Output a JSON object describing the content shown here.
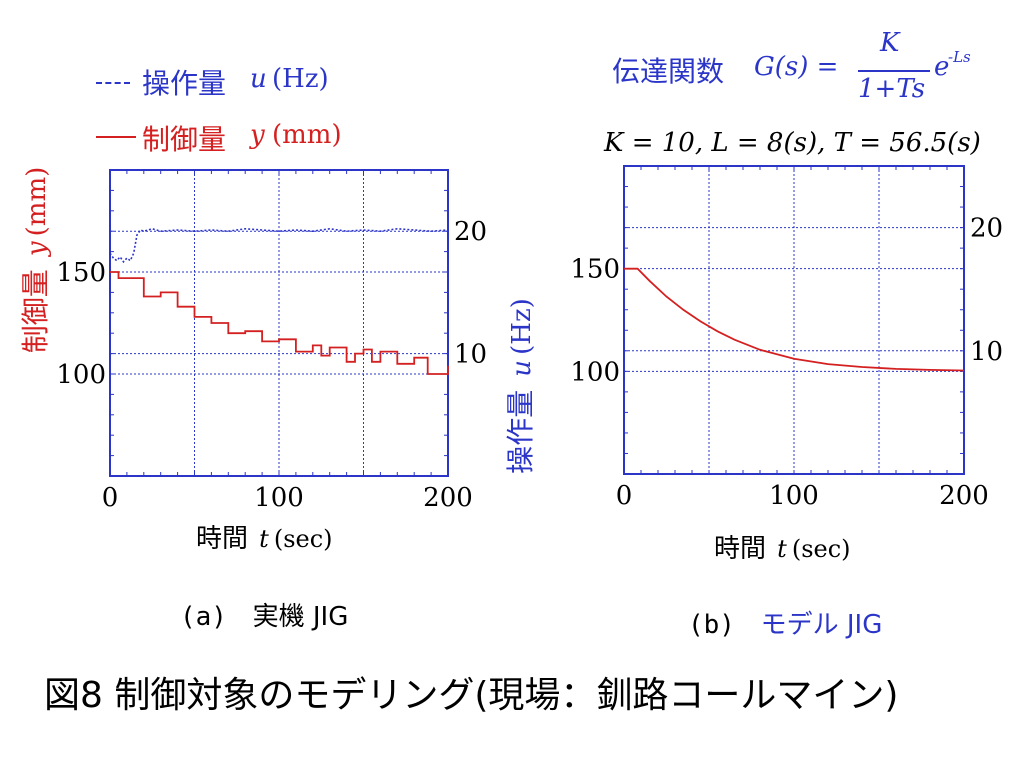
{
  "colors": {
    "red": "#d42020",
    "blue": "#2b35c8",
    "black": "#000000",
    "grid": "#2b35c8"
  },
  "legend": {
    "u_label": "操作量",
    "u_var": "u",
    "u_unit": "(Hz)",
    "y_label": "制御量",
    "y_var": "y",
    "y_unit": "(mm)"
  },
  "formula": {
    "label": "伝達関数",
    "lhs": "G(s) =",
    "numerator": "K",
    "denominator": "1+Ts",
    "exp_base": "e",
    "exp_power": "-Ls",
    "params": "K = 10, L = 8(s), T = 56.5(s)"
  },
  "axis_left": {
    "label": "制御量",
    "var": "y",
    "unit": "(mm)"
  },
  "axis_right": {
    "label": "操作量",
    "var": "u",
    "unit": "(Hz)"
  },
  "xlabel": {
    "label": "時間",
    "var": "t",
    "unit": "(sec)"
  },
  "captions": {
    "a_prefix": "(a)",
    "a_text": "実機 JIG",
    "b_prefix": "(b)",
    "b_text": "モデル JIG"
  },
  "title": "図8 制御対象のモデリング(現場：釧路コールマイン)",
  "chart_data": [
    {
      "type": "line",
      "xlim": [
        0,
        200
      ],
      "ylim": [
        50,
        200
      ],
      "ylim_right": [
        0,
        25
      ],
      "x_ticks": [
        "0",
        "100",
        "200"
      ],
      "y_ticks": [
        "150",
        "100"
      ],
      "y2_ticks": [
        "20",
        "10"
      ],
      "grid": true,
      "series": [
        {
          "name": "制御量 y (mm)",
          "axis": "left",
          "x": [
            0,
            5,
            5,
            20,
            20,
            30,
            30,
            40,
            40,
            50,
            50,
            60,
            60,
            70,
            70,
            80,
            80,
            90,
            90,
            100,
            100,
            110,
            110,
            120,
            120,
            125,
            125,
            130,
            130,
            140,
            140,
            145,
            145,
            150,
            150,
            155,
            155,
            160,
            160,
            170,
            170,
            180,
            180,
            188,
            188,
            200,
            200
          ],
          "y": [
            150,
            150,
            147,
            147,
            138,
            138,
            140,
            140,
            133,
            133,
            128,
            128,
            125,
            125,
            120,
            120,
            121,
            121,
            116,
            116,
            117,
            117,
            111,
            111,
            114,
            114,
            109,
            109,
            113,
            113,
            106,
            106,
            110,
            110,
            112,
            112,
            106,
            106,
            111,
            111,
            105,
            105,
            108,
            108,
            100,
            100,
            104
          ]
        },
        {
          "name": "操作量 u (Hz)",
          "axis": "right",
          "style": "dotted",
          "x": [
            0,
            2,
            4,
            6,
            8,
            10,
            12,
            14,
            16,
            18,
            20,
            25,
            30,
            40,
            50,
            60,
            70,
            80,
            90,
            100,
            110,
            120,
            130,
            140,
            150,
            160,
            170,
            180,
            190,
            200
          ],
          "y": [
            18.2,
            17.8,
            17.6,
            17.9,
            17.5,
            17.8,
            17.6,
            18.2,
            19.7,
            20.1,
            20.0,
            20.2,
            20.0,
            20.1,
            20.0,
            20.1,
            20.0,
            20.2,
            20.1,
            20.0,
            20.1,
            20.0,
            20.2,
            20.0,
            20.1,
            20.0,
            20.2,
            20.1,
            20.0,
            20.1
          ]
        }
      ]
    },
    {
      "type": "line",
      "xlim": [
        0,
        200
      ],
      "ylim": [
        50,
        200
      ],
      "ylim_right": [
        0,
        25
      ],
      "x_ticks": [
        "0",
        "100",
        "200"
      ],
      "y_ticks": [
        "150",
        "100"
      ],
      "y2_ticks": [
        "20",
        "10"
      ],
      "grid": true,
      "series": [
        {
          "name": "制御量 y (mm)",
          "axis": "left",
          "x": [
            0,
            8,
            15,
            25,
            35,
            45,
            55,
            65,
            80,
            100,
            120,
            140,
            160,
            180,
            200
          ],
          "y": [
            150,
            150,
            144.1,
            136.4,
            129.9,
            124.3,
            119.5,
            115.4,
            110.5,
            106.1,
            103.5,
            102.1,
            101.2,
            100.7,
            100.4
          ]
        }
      ]
    }
  ]
}
